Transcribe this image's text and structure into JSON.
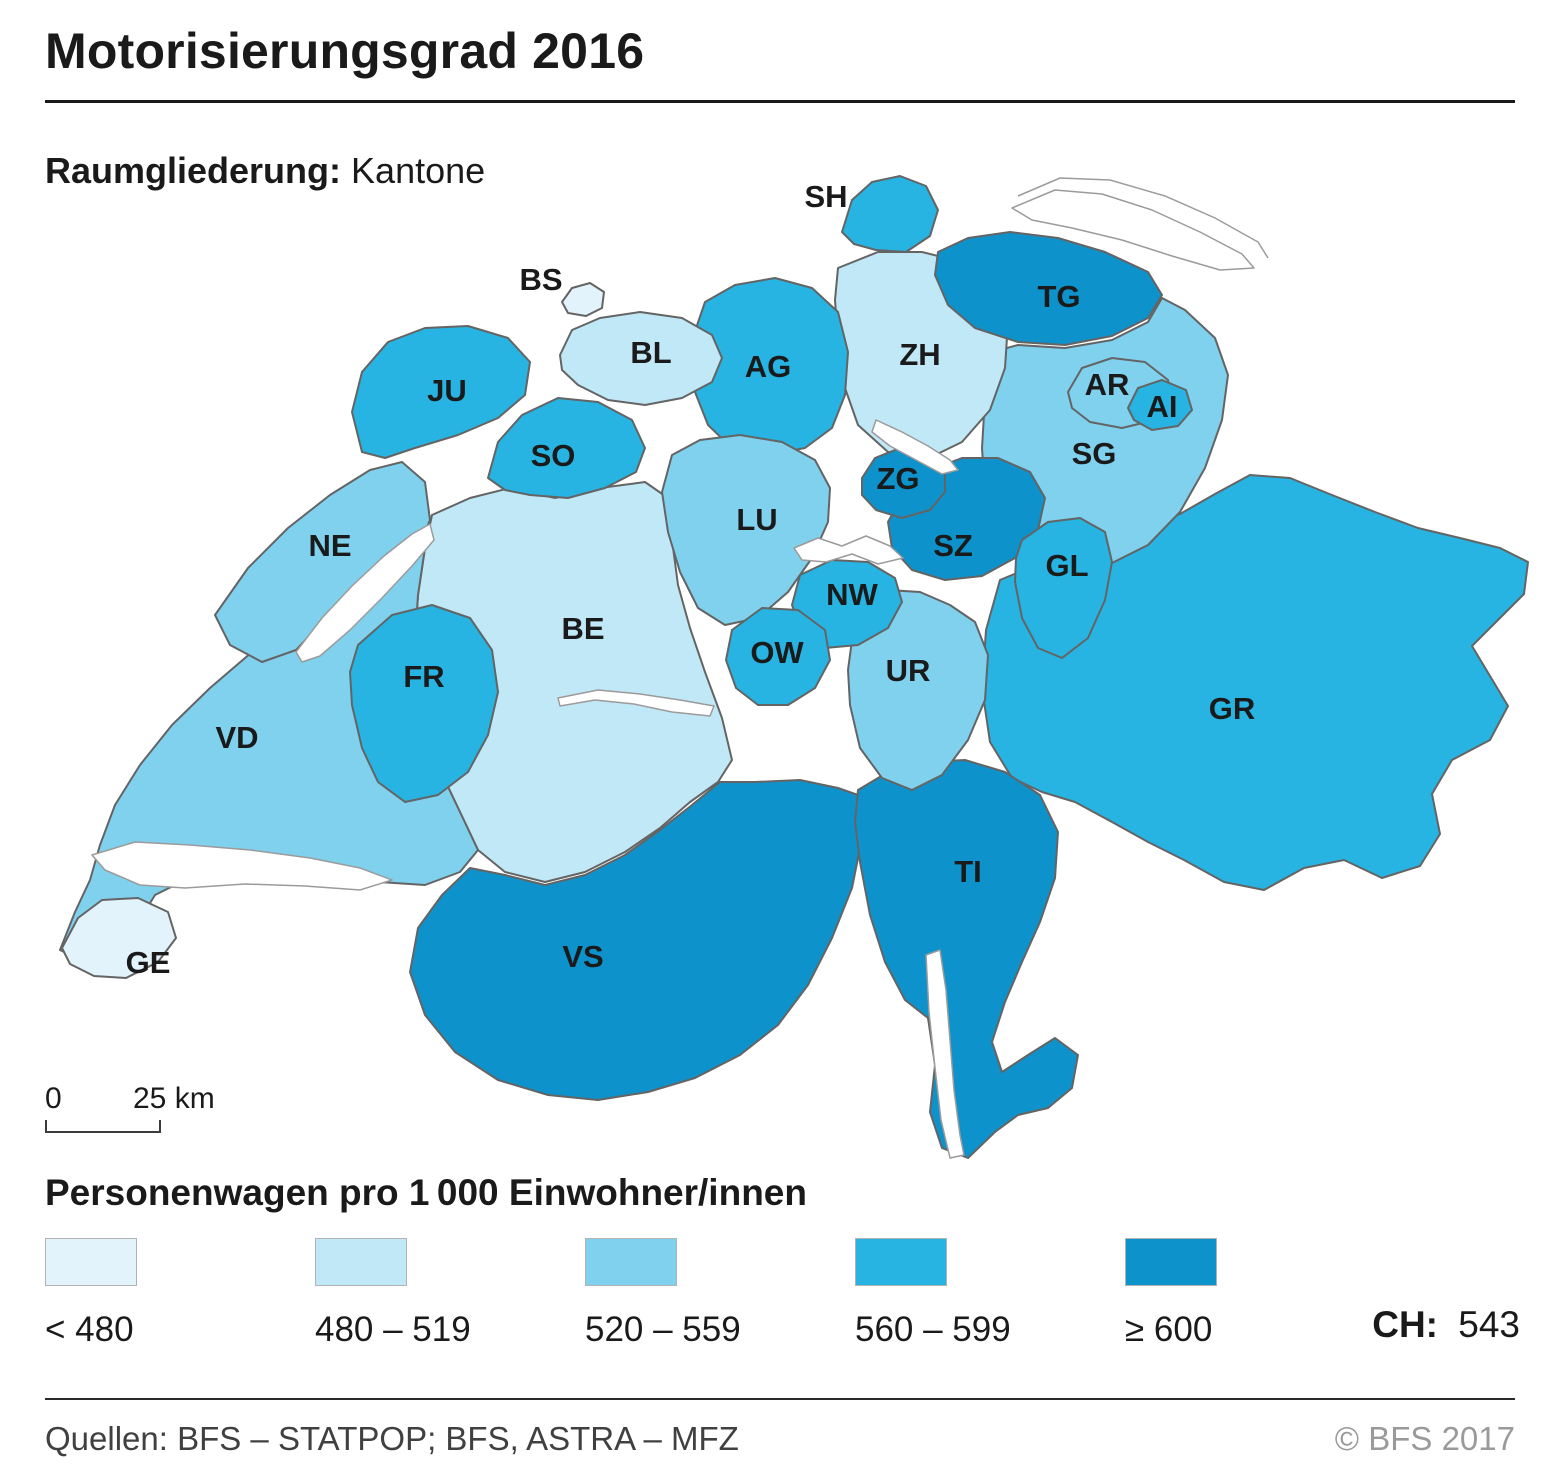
{
  "header": {
    "title": "Motorisierungsgrad 2016",
    "subtitle_label": "Raumgliederung:",
    "subtitle_value": "Kantone"
  },
  "map": {
    "scalebar": {
      "zero": "0",
      "max": "25 km"
    },
    "border_color": "#646464",
    "lake_color": "#ffffff",
    "lake_stroke": "#9b9b9b",
    "label_color": "#1a1a1a",
    "cantons": [
      {
        "id": "ZH",
        "class": 1
      },
      {
        "id": "BE",
        "class": 1
      },
      {
        "id": "LU",
        "class": 2
      },
      {
        "id": "UR",
        "class": 2
      },
      {
        "id": "SZ",
        "class": 4
      },
      {
        "id": "OW",
        "class": 3
      },
      {
        "id": "NW",
        "class": 3
      },
      {
        "id": "GL",
        "class": 3
      },
      {
        "id": "ZG",
        "class": 4
      },
      {
        "id": "FR",
        "class": 3
      },
      {
        "id": "SO",
        "class": 3
      },
      {
        "id": "BS",
        "class": 0
      },
      {
        "id": "BL",
        "class": 1
      },
      {
        "id": "SH",
        "class": 3
      },
      {
        "id": "AR",
        "class": 2
      },
      {
        "id": "AI",
        "class": 3
      },
      {
        "id": "SG",
        "class": 2
      },
      {
        "id": "GR",
        "class": 3
      },
      {
        "id": "AG",
        "class": 3
      },
      {
        "id": "TG",
        "class": 4
      },
      {
        "id": "TI",
        "class": 4
      },
      {
        "id": "VD",
        "class": 2
      },
      {
        "id": "VS",
        "class": 4
      },
      {
        "id": "NE",
        "class": 2
      },
      {
        "id": "GE",
        "class": 0
      },
      {
        "id": "JU",
        "class": 3
      }
    ]
  },
  "legend": {
    "title": "Personenwagen pro 1 000 Einwohner/innen",
    "classes": [
      {
        "label": "< 480",
        "color": "#e2f3fb"
      },
      {
        "label": "480 – 519",
        "color": "#c1e8f7"
      },
      {
        "label": "520 – 559",
        "color": "#7fd1ee"
      },
      {
        "label": "560 – 599",
        "color": "#27b4e2"
      },
      {
        "label": "≥ 600",
        "color": "#0e92cb"
      }
    ],
    "ch_label": "CH:",
    "ch_value": "543"
  },
  "footer": {
    "sources": "Quellen: BFS – STATPOP; BFS, ASTRA – MFZ",
    "copyright": "© BFS 2017"
  }
}
